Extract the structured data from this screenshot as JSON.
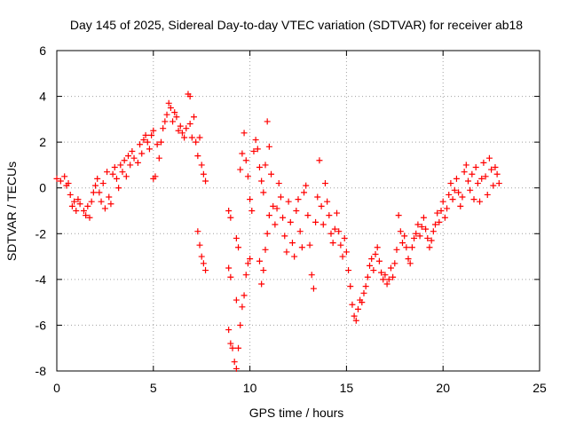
{
  "chart_data": {
    "type": "scatter",
    "title": "Day 145 of 2025, Sidereal Day-to-day VTEC variation (SDTVAR) for receiver ab18",
    "xlabel": "GPS time / hours",
    "ylabel": "SDTVAR / TECUs",
    "xlim": [
      0,
      25
    ],
    "ylim": [
      -8,
      6
    ],
    "xticks": [
      0,
      5,
      10,
      15,
      20,
      25
    ],
    "yticks": [
      -8,
      -6,
      -4,
      -2,
      0,
      2,
      4,
      6
    ],
    "grid": true,
    "marker": "+",
    "series": [
      {
        "name": "SDTVAR",
        "color": "#ff0000",
        "points": [
          [
            0.0,
            0.4
          ],
          [
            0.2,
            0.3
          ],
          [
            0.4,
            0.5
          ],
          [
            0.5,
            0.1
          ],
          [
            0.6,
            0.2
          ],
          [
            0.7,
            -0.3
          ],
          [
            0.8,
            -0.8
          ],
          [
            0.9,
            -0.6
          ],
          [
            1.0,
            -1.0
          ],
          [
            1.1,
            -0.5
          ],
          [
            1.2,
            -0.7
          ],
          [
            1.4,
            -1.0
          ],
          [
            1.5,
            -1.2
          ],
          [
            1.6,
            -0.8
          ],
          [
            1.7,
            -1.3
          ],
          [
            1.8,
            -0.6
          ],
          [
            1.9,
            -0.2
          ],
          [
            2.0,
            0.1
          ],
          [
            2.1,
            0.4
          ],
          [
            2.2,
            -0.2
          ],
          [
            2.3,
            -0.6
          ],
          [
            2.4,
            0.2
          ],
          [
            2.5,
            -0.9
          ],
          [
            2.6,
            0.7
          ],
          [
            2.7,
            -0.4
          ],
          [
            2.8,
            -0.7
          ],
          [
            2.9,
            0.6
          ],
          [
            3.0,
            0.9
          ],
          [
            3.1,
            0.4
          ],
          [
            3.2,
            0.0
          ],
          [
            3.3,
            1.0
          ],
          [
            3.4,
            0.7
          ],
          [
            3.5,
            1.2
          ],
          [
            3.6,
            0.5
          ],
          [
            3.7,
            1.4
          ],
          [
            3.8,
            1.0
          ],
          [
            3.9,
            1.6
          ],
          [
            4.0,
            1.3
          ],
          [
            4.2,
            1.1
          ],
          [
            4.3,
            1.9
          ],
          [
            4.4,
            1.5
          ],
          [
            4.5,
            2.1
          ],
          [
            4.6,
            2.3
          ],
          [
            4.7,
            2.0
          ],
          [
            4.8,
            1.7
          ],
          [
            4.9,
            2.3
          ],
          [
            5.0,
            2.5
          ],
          [
            5.0,
            0.4
          ],
          [
            5.1,
            0.5
          ],
          [
            5.2,
            1.9
          ],
          [
            5.3,
            1.3
          ],
          [
            5.4,
            2.0
          ],
          [
            5.5,
            2.6
          ],
          [
            5.6,
            2.9
          ],
          [
            5.7,
            3.2
          ],
          [
            5.8,
            3.7
          ],
          [
            5.9,
            3.5
          ],
          [
            6.0,
            2.9
          ],
          [
            6.1,
            3.3
          ],
          [
            6.2,
            3.1
          ],
          [
            6.3,
            2.5
          ],
          [
            6.4,
            2.7
          ],
          [
            6.5,
            2.4
          ],
          [
            6.6,
            2.2
          ],
          [
            6.7,
            2.6
          ],
          [
            6.8,
            4.1
          ],
          [
            6.9,
            4.0
          ],
          [
            6.9,
            2.8
          ],
          [
            7.0,
            2.2
          ],
          [
            7.1,
            3.1
          ],
          [
            7.2,
            2.0
          ],
          [
            7.3,
            1.4
          ],
          [
            7.4,
            2.2
          ],
          [
            7.5,
            1.0
          ],
          [
            7.6,
            0.6
          ],
          [
            7.7,
            0.3
          ],
          [
            7.3,
            -1.9
          ],
          [
            7.4,
            -2.5
          ],
          [
            7.5,
            -3.0
          ],
          [
            7.6,
            -3.3
          ],
          [
            7.7,
            -3.6
          ],
          [
            8.9,
            -1.0
          ],
          [
            9.0,
            -1.3
          ],
          [
            8.9,
            -3.5
          ],
          [
            9.0,
            -3.9
          ],
          [
            8.9,
            -6.2
          ],
          [
            9.0,
            -6.8
          ],
          [
            9.1,
            -7.0
          ],
          [
            9.2,
            -7.6
          ],
          [
            9.3,
            -7.9
          ],
          [
            9.4,
            -7.0
          ],
          [
            9.5,
            -6.0
          ],
          [
            9.3,
            -2.2
          ],
          [
            9.4,
            -2.6
          ],
          [
            9.3,
            -4.9
          ],
          [
            9.6,
            -5.2
          ],
          [
            9.7,
            -4.7
          ],
          [
            9.8,
            -3.8
          ],
          [
            9.9,
            -3.3
          ],
          [
            10.0,
            -3.1
          ],
          [
            9.5,
            0.8
          ],
          [
            9.6,
            1.5
          ],
          [
            9.7,
            2.4
          ],
          [
            9.8,
            1.2
          ],
          [
            9.9,
            0.5
          ],
          [
            10.0,
            -0.5
          ],
          [
            10.1,
            -1.0
          ],
          [
            10.2,
            1.6
          ],
          [
            10.3,
            2.1
          ],
          [
            10.4,
            1.7
          ],
          [
            10.5,
            0.9
          ],
          [
            10.6,
            0.3
          ],
          [
            10.7,
            -0.2
          ],
          [
            10.8,
            1.0
          ],
          [
            10.9,
            2.9
          ],
          [
            11.0,
            1.8
          ],
          [
            11.1,
            0.6
          ],
          [
            11.2,
            -0.8
          ],
          [
            11.3,
            -1.6
          ],
          [
            11.4,
            -0.9
          ],
          [
            10.5,
            -3.2
          ],
          [
            10.6,
            -4.2
          ],
          [
            10.7,
            -3.6
          ],
          [
            10.8,
            -2.7
          ],
          [
            10.9,
            -2.0
          ],
          [
            11.0,
            -1.2
          ],
          [
            11.5,
            0.2
          ],
          [
            11.6,
            -0.4
          ],
          [
            11.7,
            -1.3
          ],
          [
            11.8,
            -2.1
          ],
          [
            11.9,
            -2.8
          ],
          [
            12.0,
            -0.6
          ],
          [
            12.1,
            -1.5
          ],
          [
            12.2,
            -2.4
          ],
          [
            12.3,
            -3.0
          ],
          [
            12.4,
            -1.0
          ],
          [
            12.5,
            -0.5
          ],
          [
            12.6,
            -1.9
          ],
          [
            12.7,
            -2.6
          ],
          [
            12.8,
            -0.2
          ],
          [
            12.9,
            0.1
          ],
          [
            13.0,
            -1.2
          ],
          [
            13.1,
            -2.5
          ],
          [
            13.2,
            -3.8
          ],
          [
            13.3,
            -4.4
          ],
          [
            13.4,
            -1.5
          ],
          [
            13.5,
            -0.4
          ],
          [
            13.6,
            1.2
          ],
          [
            13.7,
            -0.8
          ],
          [
            13.8,
            -1.6
          ],
          [
            13.9,
            0.2
          ],
          [
            14.0,
            -0.6
          ],
          [
            14.1,
            -1.2
          ],
          [
            14.2,
            -2.0
          ],
          [
            14.3,
            -2.4
          ],
          [
            14.4,
            -1.8
          ],
          [
            14.5,
            -1.1
          ],
          [
            14.6,
            -1.9
          ],
          [
            14.7,
            -2.5
          ],
          [
            14.8,
            -3.0
          ],
          [
            14.9,
            -2.2
          ],
          [
            15.0,
            -2.8
          ],
          [
            15.1,
            -3.6
          ],
          [
            15.2,
            -4.3
          ],
          [
            15.3,
            -5.1
          ],
          [
            15.4,
            -5.6
          ],
          [
            15.5,
            -5.8
          ],
          [
            15.6,
            -5.3
          ],
          [
            15.7,
            -4.9
          ],
          [
            15.8,
            -5.0
          ],
          [
            15.9,
            -4.6
          ],
          [
            16.0,
            -4.3
          ],
          [
            16.1,
            -3.9
          ],
          [
            16.2,
            -3.4
          ],
          [
            16.3,
            -3.1
          ],
          [
            16.4,
            -3.6
          ],
          [
            16.5,
            -2.9
          ],
          [
            16.6,
            -2.6
          ],
          [
            16.7,
            -3.2
          ],
          [
            16.8,
            -3.7
          ],
          [
            16.9,
            -4.0
          ],
          [
            17.0,
            -3.8
          ],
          [
            17.1,
            -4.2
          ],
          [
            17.2,
            -4.0
          ],
          [
            17.3,
            -3.5
          ],
          [
            17.4,
            -3.9
          ],
          [
            17.5,
            -3.3
          ],
          [
            17.6,
            -2.7
          ],
          [
            17.7,
            -1.2
          ],
          [
            17.8,
            -1.9
          ],
          [
            17.9,
            -2.4
          ],
          [
            18.0,
            -2.1
          ],
          [
            18.1,
            -2.6
          ],
          [
            18.2,
            -3.1
          ],
          [
            18.3,
            -3.3
          ],
          [
            18.4,
            -2.6
          ],
          [
            18.5,
            -2.2
          ],
          [
            18.6,
            -2.0
          ],
          [
            18.7,
            -1.6
          ],
          [
            18.8,
            -2.1
          ],
          [
            18.9,
            -1.7
          ],
          [
            19.0,
            -1.3
          ],
          [
            19.1,
            -1.8
          ],
          [
            19.2,
            -2.2
          ],
          [
            19.3,
            -2.6
          ],
          [
            19.4,
            -2.3
          ],
          [
            19.5,
            -1.9
          ],
          [
            19.6,
            -1.6
          ],
          [
            19.7,
            -1.1
          ],
          [
            19.8,
            -1.5
          ],
          [
            19.9,
            -1.0
          ],
          [
            20.0,
            -0.6
          ],
          [
            20.1,
            -1.3
          ],
          [
            20.2,
            -0.9
          ],
          [
            20.3,
            -0.3
          ],
          [
            20.4,
            0.2
          ],
          [
            20.5,
            -0.5
          ],
          [
            20.6,
            -0.1
          ],
          [
            20.7,
            0.4
          ],
          [
            20.8,
            -0.2
          ],
          [
            20.9,
            -0.8
          ],
          [
            21.0,
            -0.4
          ],
          [
            21.1,
            0.7
          ],
          [
            21.2,
            1.0
          ],
          [
            21.3,
            0.3
          ],
          [
            21.4,
            -0.1
          ],
          [
            21.5,
            0.6
          ],
          [
            21.6,
            -0.5
          ],
          [
            21.7,
            0.9
          ],
          [
            21.8,
            0.2
          ],
          [
            21.9,
            -0.6
          ],
          [
            22.0,
            0.4
          ],
          [
            22.1,
            1.1
          ],
          [
            22.2,
            0.5
          ],
          [
            22.3,
            -0.3
          ],
          [
            22.4,
            1.3
          ],
          [
            22.5,
            0.8
          ],
          [
            22.6,
            0.1
          ],
          [
            22.7,
            0.9
          ],
          [
            22.8,
            0.6
          ],
          [
            22.9,
            0.2
          ]
        ]
      }
    ]
  }
}
